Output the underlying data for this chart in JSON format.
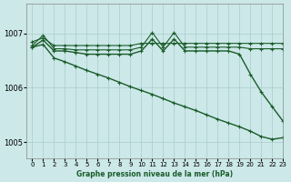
{
  "background_color": "#cce8e8",
  "grid_color": "#aacccc",
  "line_color": "#1a5c2a",
  "xlabel": "Graphe pression niveau de la mer (hPa)",
  "ylim": [
    1004.7,
    1007.55
  ],
  "xlim": [
    -0.5,
    23
  ],
  "yticks": [
    1005,
    1006,
    1007
  ],
  "xticks": [
    0,
    1,
    2,
    3,
    4,
    5,
    6,
    7,
    8,
    9,
    10,
    11,
    12,
    13,
    14,
    15,
    16,
    17,
    18,
    19,
    20,
    21,
    22,
    23
  ],
  "series": [
    {
      "x": [
        0,
        1,
        2,
        3,
        4,
        5,
        6,
        7,
        8,
        9,
        10,
        11,
        12,
        13,
        14,
        15,
        16,
        17,
        18,
        19,
        20,
        21,
        22,
        23
      ],
      "y": [
        1006.85,
        1006.92,
        1006.78,
        1006.78,
        1006.78,
        1006.78,
        1006.78,
        1006.78,
        1006.78,
        1006.78,
        1006.82,
        1006.82,
        1006.82,
        1006.82,
        1006.82,
        1006.82,
        1006.82,
        1006.82,
        1006.82,
        1006.82,
        1006.82,
        1006.82,
        1006.82,
        1006.82
      ],
      "marker": "+",
      "ms": 3,
      "lw": 0.8
    },
    {
      "x": [
        0,
        1,
        2,
        3,
        4,
        5,
        6,
        7,
        8,
        9,
        10,
        11,
        12,
        13,
        14,
        15,
        16,
        17,
        18,
        19,
        20,
        21,
        22,
        23
      ],
      "y": [
        1006.78,
        1006.97,
        1006.72,
        1006.72,
        1006.7,
        1006.7,
        1006.7,
        1006.7,
        1006.7,
        1006.7,
        1006.75,
        1007.02,
        1006.75,
        1007.02,
        1006.75,
        1006.75,
        1006.75,
        1006.75,
        1006.75,
        1006.75,
        1006.72,
        1006.72,
        1006.72,
        1006.72
      ],
      "marker": "+",
      "ms": 3,
      "lw": 0.8
    },
    {
      "x": [
        0,
        1,
        2,
        3,
        4,
        5,
        6,
        7,
        8,
        9,
        10,
        11,
        12,
        13,
        14,
        15,
        16,
        17,
        18,
        19,
        20,
        21,
        22,
        23
      ],
      "y": [
        1006.75,
        1006.88,
        1006.68,
        1006.68,
        1006.65,
        1006.62,
        1006.62,
        1006.62,
        1006.62,
        1006.62,
        1006.68,
        1006.9,
        1006.68,
        1006.9,
        1006.68,
        1006.68,
        1006.68,
        1006.68,
        1006.68,
        1006.62,
        1006.25,
        1005.92,
        1005.65,
        1005.38
      ],
      "marker": "+",
      "ms": 3,
      "lw": 1.0
    },
    {
      "x": [
        0,
        1,
        2,
        3,
        4,
        5,
        6,
        7,
        8,
        9,
        10,
        11,
        12,
        13,
        14,
        15,
        16,
        17,
        18,
        19,
        20,
        21,
        22,
        23
      ],
      "y": [
        1006.75,
        1006.8,
        1006.55,
        1006.48,
        1006.4,
        1006.32,
        1006.25,
        1006.18,
        1006.1,
        1006.02,
        1005.95,
        1005.88,
        1005.8,
        1005.72,
        1005.65,
        1005.58,
        1005.5,
        1005.42,
        1005.35,
        1005.28,
        1005.2,
        1005.1,
        1005.05,
        1005.08
      ],
      "marker": "+",
      "ms": 3,
      "lw": 1.0
    }
  ]
}
